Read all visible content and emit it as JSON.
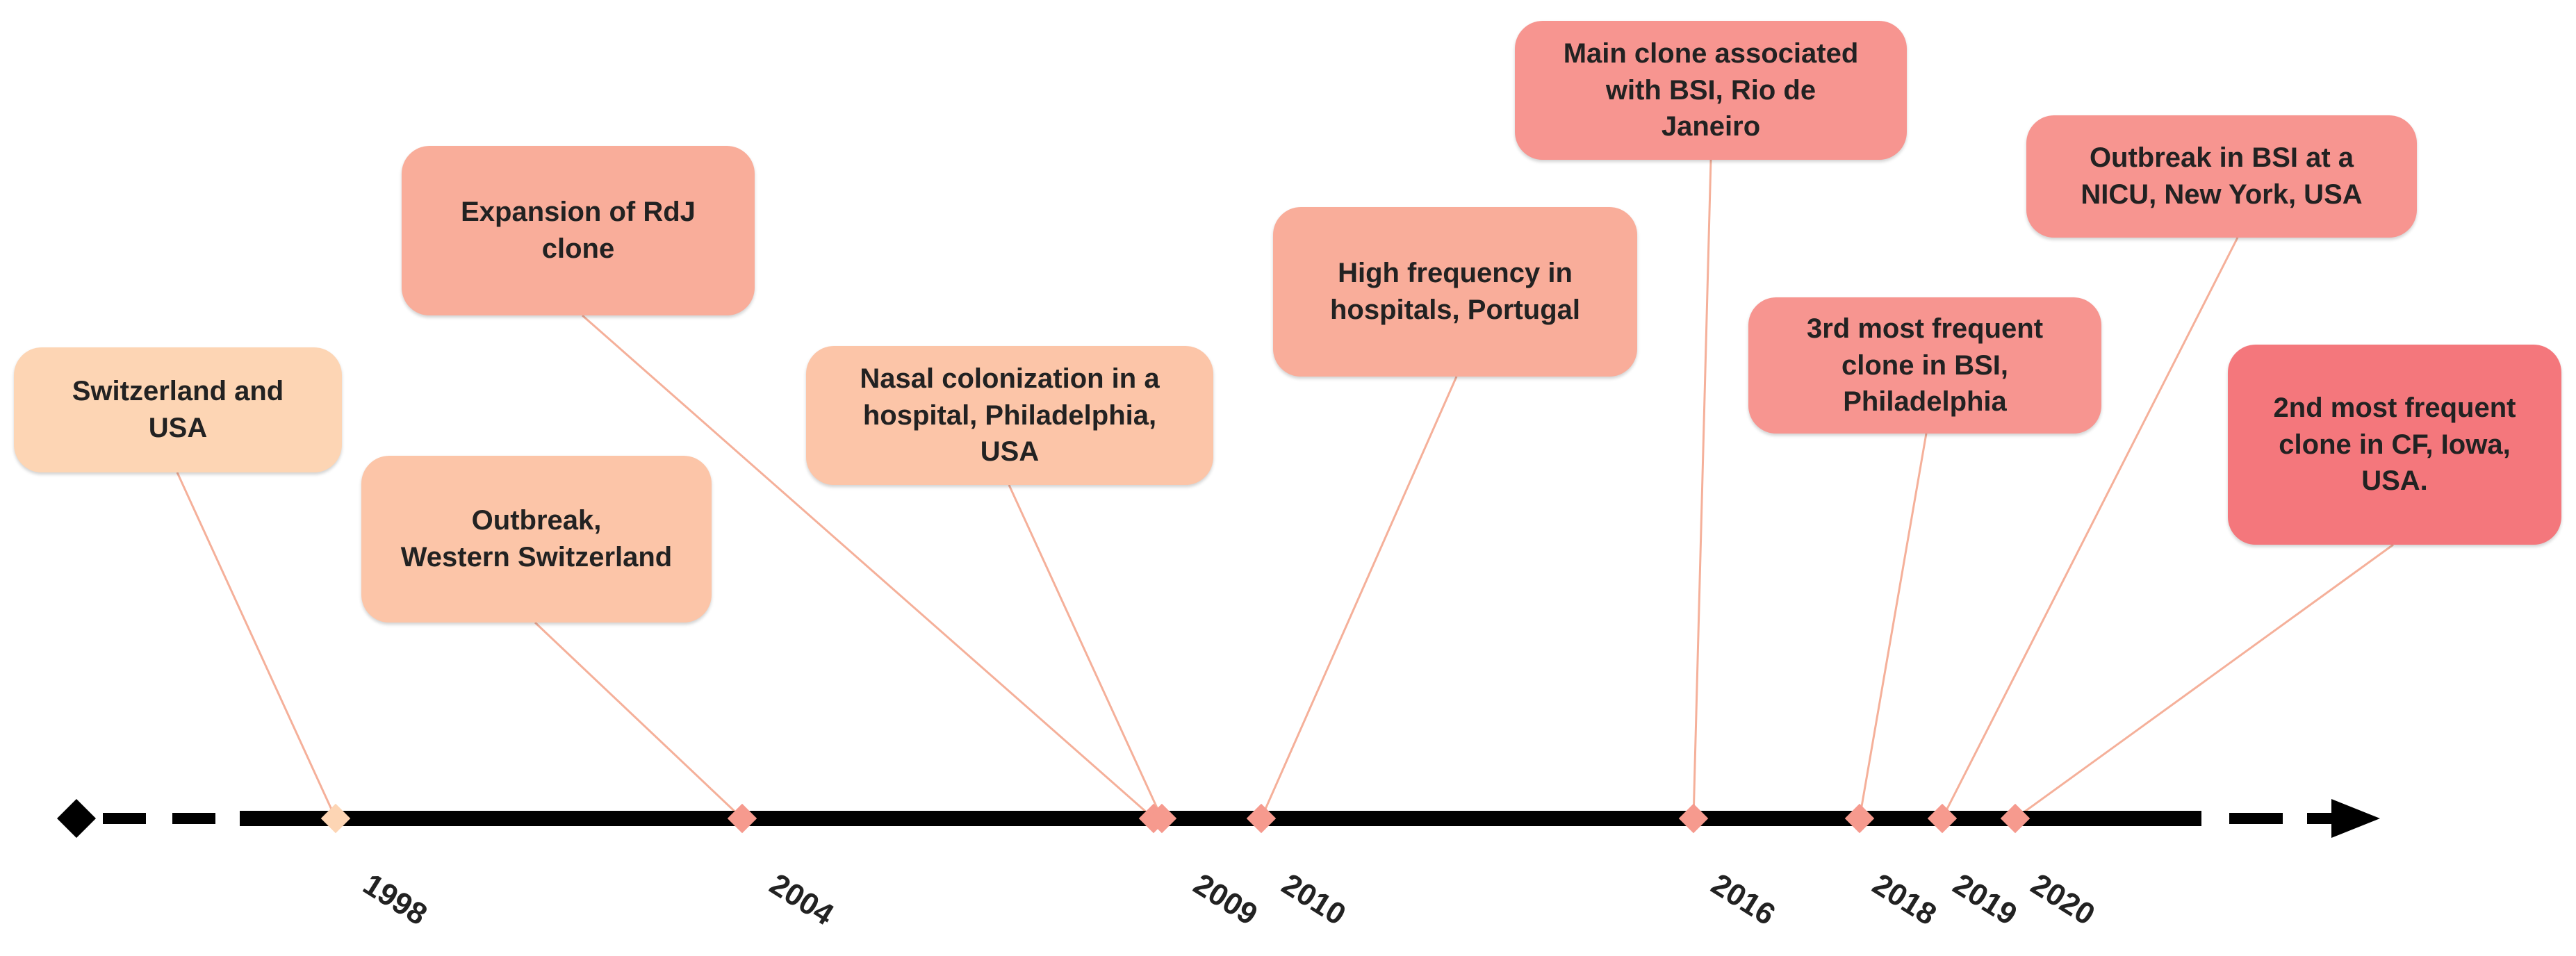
{
  "colors": {
    "axis": "#000000",
    "connector": "#f5b09a",
    "tone_light": "#fdd5b4",
    "tone_light_mid": "#fcc5a8",
    "tone_mid": "#f9ad9a",
    "tone_dark": "#f79590",
    "tone_darkest": "#f4777c"
  },
  "events": [
    {
      "id": "e1998",
      "year": "1998",
      "label": "Switzerland and USA",
      "tone": "tone_light"
    },
    {
      "id": "e2004",
      "year": "2004",
      "label": "Outbreak, Western Switzerland",
      "tone": "tone_light_mid"
    },
    {
      "id": "e2009a",
      "year": "2009",
      "label": "Expansion of RdJ clone",
      "tone": "tone_mid"
    },
    {
      "id": "e2009b",
      "year": "2009",
      "label": "Nasal colonization in a hospital, Philadelphia, USA",
      "tone": "tone_light_mid"
    },
    {
      "id": "e2010",
      "year": "2010",
      "label": "High frequency in hospitals, Portugal",
      "tone": "tone_mid"
    },
    {
      "id": "e2016",
      "year": "2016",
      "label": "Main clone associated with BSI, Rio de Janeiro",
      "tone": "tone_dark"
    },
    {
      "id": "e2018",
      "year": "2018",
      "label": "3rd most frequent clone in BSI, Philadelphia",
      "tone": "tone_dark"
    },
    {
      "id": "e2019",
      "year": "2019",
      "label": "Outbreak in BSI at a NICU, New York, USA",
      "tone": "tone_dark"
    },
    {
      "id": "e2020",
      "year": "2020",
      "label": "2nd most frequent clone in CF, Iowa, USA.",
      "tone": "tone_darkest"
    }
  ],
  "years": [
    "1998",
    "2004",
    "2009",
    "2010",
    "2016",
    "2018",
    "2019",
    "2020"
  ]
}
